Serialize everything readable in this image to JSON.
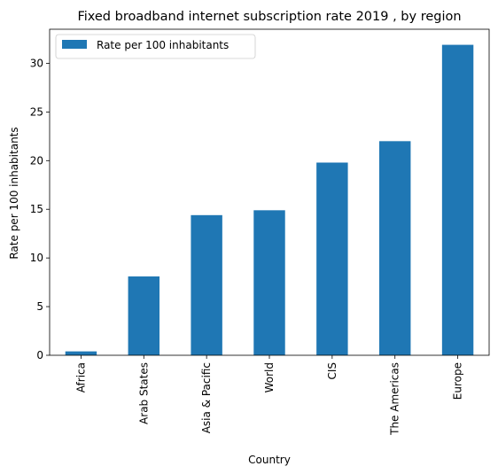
{
  "chart_data": {
    "type": "bar",
    "title": "Fixed broadband internet subscription rate 2019 , by region",
    "xlabel": "Country",
    "ylabel": "Rate per 100 inhabitants",
    "categories": [
      "Africa",
      "Arab States",
      "Asia & Pacific",
      "World",
      "CIS",
      "The Americas",
      "Europe"
    ],
    "series": [
      {
        "name": "Rate per 100 inhabitants",
        "values": [
          0.4,
          8.1,
          14.4,
          14.9,
          19.8,
          22.0,
          31.9
        ],
        "color": "#1f77b4"
      }
    ],
    "ylim": [
      0,
      33.5
    ],
    "yticks": [
      0,
      5,
      10,
      15,
      20,
      25,
      30
    ],
    "grid": false,
    "legend": "top-left"
  }
}
